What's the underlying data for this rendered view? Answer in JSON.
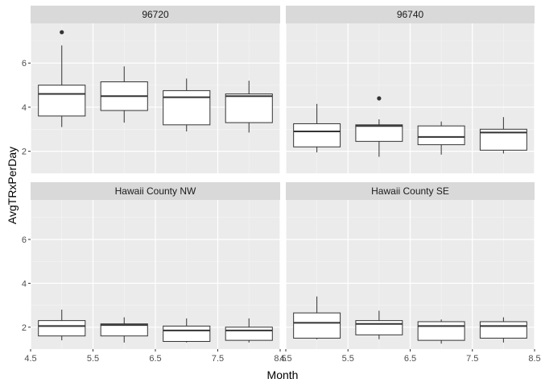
{
  "chart_data": {
    "type": "boxplot",
    "facet_layout": "2x2 grid",
    "xlabel": "Month",
    "ylabel": "AvgTRxPerDay",
    "xlim": [
      4.5,
      8.5
    ],
    "ylim": [
      1.0,
      7.8
    ],
    "x_breaks": [
      4.5,
      5.5,
      6.5,
      7.5,
      8.5
    ],
    "x_tick_labels": [
      "4.5",
      "5.5",
      "6.5",
      "7.5",
      "8.5"
    ],
    "y_breaks": [
      2,
      4,
      6
    ],
    "y_tick_labels": [
      "2",
      "4",
      "6"
    ],
    "grid": true,
    "panel_background": "#ebebeb",
    "strip_background": "#d9d9d9",
    "panels": [
      {
        "label": "96720",
        "boxes": [
          {
            "x": 5,
            "min": 3.1,
            "q1": 3.6,
            "median": 4.6,
            "q3": 5.0,
            "max": 6.8,
            "outliers": [
              7.4
            ]
          },
          {
            "x": 6,
            "min": 3.3,
            "q1": 3.85,
            "median": 4.5,
            "q3": 5.15,
            "max": 5.85,
            "outliers": []
          },
          {
            "x": 7,
            "min": 2.9,
            "q1": 3.2,
            "median": 4.45,
            "q3": 4.75,
            "max": 5.3,
            "outliers": []
          },
          {
            "x": 8,
            "min": 2.85,
            "q1": 3.3,
            "median": 4.5,
            "q3": 4.6,
            "max": 5.2,
            "outliers": []
          }
        ]
      },
      {
        "label": "96740",
        "boxes": [
          {
            "x": 5,
            "min": 1.95,
            "q1": 2.2,
            "median": 2.9,
            "q3": 3.25,
            "max": 4.15,
            "outliers": []
          },
          {
            "x": 6,
            "min": 1.75,
            "q1": 2.45,
            "median": 3.15,
            "q3": 3.2,
            "max": 3.45,
            "outliers": [
              4.4
            ]
          },
          {
            "x": 7,
            "min": 1.85,
            "q1": 2.3,
            "median": 2.65,
            "q3": 3.15,
            "max": 3.35,
            "outliers": []
          },
          {
            "x": 8,
            "min": 1.9,
            "q1": 2.05,
            "median": 2.85,
            "q3": 3.0,
            "max": 3.55,
            "outliers": []
          }
        ]
      },
      {
        "label": "Hawaii County NW",
        "boxes": [
          {
            "x": 5,
            "min": 1.4,
            "q1": 1.6,
            "median": 2.05,
            "q3": 2.3,
            "max": 2.8,
            "outliers": []
          },
          {
            "x": 6,
            "min": 1.3,
            "q1": 1.6,
            "median": 2.1,
            "q3": 2.15,
            "max": 2.45,
            "outliers": []
          },
          {
            "x": 7,
            "min": 1.3,
            "q1": 1.35,
            "median": 1.85,
            "q3": 2.05,
            "max": 2.4,
            "outliers": []
          },
          {
            "x": 8,
            "min": 1.3,
            "q1": 1.4,
            "median": 1.85,
            "q3": 2.0,
            "max": 2.4,
            "outliers": []
          }
        ]
      },
      {
        "label": "Hawaii County SE",
        "boxes": [
          {
            "x": 5,
            "min": 1.45,
            "q1": 1.5,
            "median": 2.2,
            "q3": 2.65,
            "max": 3.4,
            "outliers": []
          },
          {
            "x": 6,
            "min": 1.45,
            "q1": 1.65,
            "median": 2.15,
            "q3": 2.3,
            "max": 2.75,
            "outliers": []
          },
          {
            "x": 7,
            "min": 1.25,
            "q1": 1.4,
            "median": 2.05,
            "q3": 2.25,
            "max": 2.35,
            "outliers": []
          },
          {
            "x": 8,
            "min": 1.3,
            "q1": 1.5,
            "median": 2.05,
            "q3": 2.25,
            "max": 2.45,
            "outliers": []
          }
        ]
      }
    ]
  }
}
